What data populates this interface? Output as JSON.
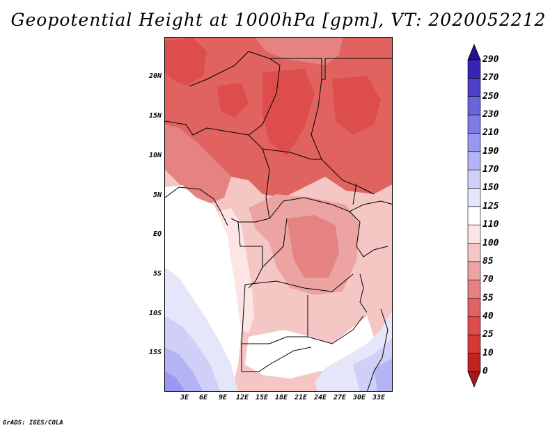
{
  "title": "Geopotential Height at 1000hPa [gpm], VT: 2020052212",
  "footer": "GrADS: IGES/COLA",
  "lat_labels": [
    "20N",
    "15N",
    "10N",
    "5N",
    "EQ",
    "5S",
    "10S",
    "15S"
  ],
  "lon_labels": [
    "3E",
    "6E",
    "9E",
    "12E",
    "15E",
    "18E",
    "21E",
    "24E",
    "27E",
    "30E",
    "33E"
  ],
  "colorbar": {
    "levels": [
      "0",
      "10",
      "25",
      "40",
      "55",
      "70",
      "85",
      "100",
      "110",
      "125",
      "150",
      "170",
      "190",
      "210",
      "230",
      "250",
      "270",
      "290"
    ],
    "colors": [
      "#a51a16",
      "#c02420",
      "#d63834",
      "#dd4d4b",
      "#e0635f",
      "#e48381",
      "#eca4a2",
      "#f4c6c4",
      "#fbe6e5",
      "#ffffff",
      "#e6e6fa",
      "#cfcff7",
      "#b3b3f5",
      "#9a97f0",
      "#7f7ae6",
      "#6a63dc",
      "#4c40c8",
      "#3724b4",
      "#241193"
    ]
  },
  "map_colors": {
    "dark_red": "#dd4d4b",
    "red": "#e0635f",
    "med": "#e48381",
    "light": "#eca4a2",
    "pale": "#f4c6c4",
    "palest": "#fbe6e5",
    "white": "#ffffff",
    "lav1": "#e6e6fa",
    "lav2": "#cfcff7",
    "lav3": "#b3b3f5",
    "lav4": "#9a97f0"
  }
}
